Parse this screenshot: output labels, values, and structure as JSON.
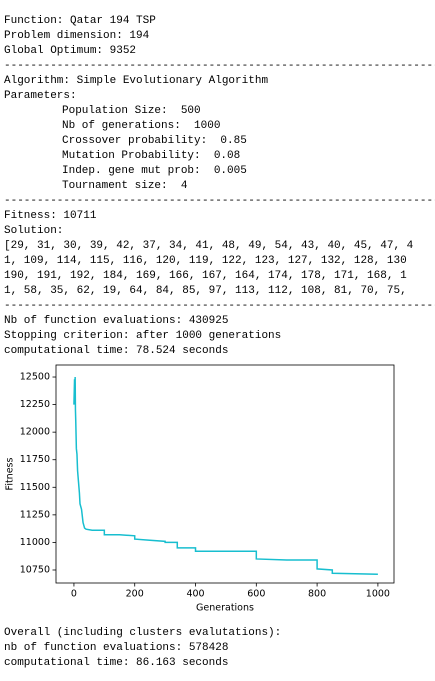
{
  "problem": [
    "Function: Qatar 194 TSP",
    "Problem dimension: 194",
    "Global Optimum: 9352"
  ],
  "separator": "------------------------------------------------------------------",
  "algorithm": [
    "Algorithm: Simple Evolutionary Algorithm",
    "Parameters:"
  ],
  "parameters": [
    "Population Size:  500",
    "Nb of generations:  1000",
    "Crossover probability:  0.85",
    "Mutation Probability:  0.08",
    "Indep. gene mut prob:  0.005",
    "Tournament size:  4"
  ],
  "result": [
    "Fitness: 10711",
    "Solution:",
    "[29, 31, 30, 39, 42, 37, 34, 41, 48, 49, 54, 43, 40, 45, 47, 4",
    "1, 109, 114, 115, 116, 120, 119, 122, 123, 127, 132, 128, 130",
    "190, 191, 192, 184, 169, 166, 167, 164, 174, 178, 171, 168, 1",
    "1, 58, 35, 62, 19, 64, 84, 85, 97, 113, 112, 108, 81, 70, 75,"
  ],
  "run": [
    "Nb of function evaluations: 430925",
    "Stopping criterion: after 1000 generations",
    "computational time: 78.524 seconds"
  ],
  "overall": [
    "Overall (including clusters evalutations):",
    "nb of function evaluations: 578428",
    "computational time: 86.163 seconds"
  ],
  "chart_data": {
    "type": "line",
    "x_label": "Generations",
    "y_label": "Fitness",
    "series": [
      {
        "color": "#17becf",
        "x": [
          0,
          2,
          3,
          4,
          5,
          6,
          8,
          10,
          12,
          15,
          18,
          20,
          25,
          30,
          35,
          40,
          60,
          100,
          100,
          150,
          200,
          200,
          250,
          300,
          300,
          340,
          340,
          400,
          400,
          600,
          600,
          700,
          800,
          800,
          850,
          850,
          1000
        ],
        "values": [
          12250,
          12480,
          12300,
          12500,
          12200,
          12100,
          11850,
          11800,
          11650,
          11550,
          11450,
          11350,
          11300,
          11180,
          11130,
          11120,
          11110,
          11110,
          11070,
          11070,
          11060,
          11030,
          11020,
          11010,
          11000,
          11000,
          10950,
          10950,
          10920,
          10920,
          10850,
          10840,
          10840,
          10760,
          10750,
          10720,
          10711
        ]
      }
    ],
    "xlim": [
      -59,
      1053
    ],
    "ylim": [
      10632,
      12609
    ],
    "xticks": [
      0,
      200,
      400,
      600,
      800,
      1000
    ],
    "yticks": [
      10750,
      11000,
      11250,
      11500,
      11750,
      12000,
      12250,
      12500
    ]
  }
}
